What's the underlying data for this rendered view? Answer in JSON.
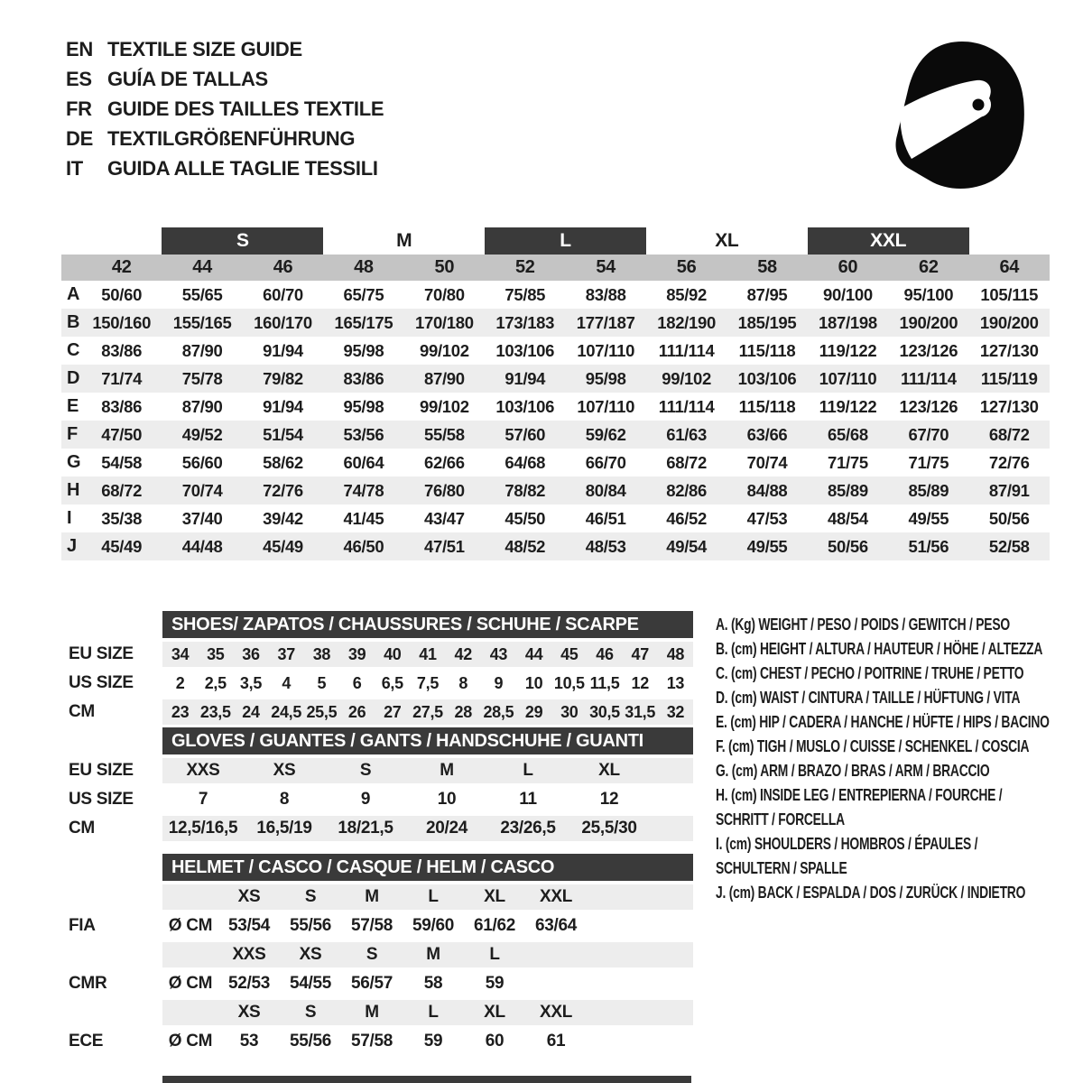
{
  "header": {
    "languages": [
      {
        "code": "EN",
        "label": "TEXTILE SIZE GUIDE"
      },
      {
        "code": "ES",
        "label": "GUÍA DE TALLAS"
      },
      {
        "code": "FR",
        "label": "GUIDE DES TAILLES TEXTILE"
      },
      {
        "code": "DE",
        "label": "TEXTILGRÖßENFÜHRUNG"
      },
      {
        "code": "IT",
        "label": "GUIDA ALLE TAGLIE TESSILI"
      }
    ],
    "icon": "racing-helmet-icon"
  },
  "textile_table": {
    "size_bands": [
      {
        "label": "S",
        "boxed": true
      },
      {
        "label": "M",
        "boxed": false
      },
      {
        "label": "L",
        "boxed": true
      },
      {
        "label": "XL",
        "boxed": false
      },
      {
        "label": "XXL",
        "boxed": true
      }
    ],
    "columns": [
      "42",
      "44",
      "46",
      "48",
      "50",
      "52",
      "54",
      "56",
      "58",
      "60",
      "62",
      "64"
    ],
    "rows": [
      {
        "label": "A",
        "values": [
          "50/60",
          "55/65",
          "60/70",
          "65/75",
          "70/80",
          "75/85",
          "83/88",
          "85/92",
          "87/95",
          "90/100",
          "95/100",
          "105/115"
        ]
      },
      {
        "label": "B",
        "values": [
          "150/160",
          "155/165",
          "160/170",
          "165/175",
          "170/180",
          "173/183",
          "177/187",
          "182/190",
          "185/195",
          "187/198",
          "190/200",
          "190/200"
        ]
      },
      {
        "label": "C",
        "values": [
          "83/86",
          "87/90",
          "91/94",
          "95/98",
          "99/102",
          "103/106",
          "107/110",
          "111/114",
          "115/118",
          "119/122",
          "123/126",
          "127/130"
        ]
      },
      {
        "label": "D",
        "values": [
          "71/74",
          "75/78",
          "79/82",
          "83/86",
          "87/90",
          "91/94",
          "95/98",
          "99/102",
          "103/106",
          "107/110",
          "111/114",
          "115/119"
        ]
      },
      {
        "label": "E",
        "values": [
          "83/86",
          "87/90",
          "91/94",
          "95/98",
          "99/102",
          "103/106",
          "107/110",
          "111/114",
          "115/118",
          "119/122",
          "123/126",
          "127/130"
        ]
      },
      {
        "label": "F",
        "values": [
          "47/50",
          "49/52",
          "51/54",
          "53/56",
          "55/58",
          "57/60",
          "59/62",
          "61/63",
          "63/66",
          "65/68",
          "67/70",
          "68/72"
        ]
      },
      {
        "label": "G",
        "values": [
          "54/58",
          "56/60",
          "58/62",
          "60/64",
          "62/66",
          "64/68",
          "66/70",
          "68/72",
          "70/74",
          "71/75",
          "71/75",
          "72/76"
        ]
      },
      {
        "label": "H",
        "values": [
          "68/72",
          "70/74",
          "72/76",
          "74/78",
          "76/80",
          "78/82",
          "80/84",
          "82/86",
          "84/88",
          "85/89",
          "85/89",
          "87/91"
        ]
      },
      {
        "label": "I",
        "values": [
          "35/38",
          "37/40",
          "39/42",
          "41/45",
          "43/47",
          "45/50",
          "46/51",
          "46/52",
          "47/53",
          "48/54",
          "49/55",
          "50/56"
        ]
      },
      {
        "label": "J",
        "values": [
          "45/49",
          "44/48",
          "45/49",
          "46/50",
          "47/51",
          "48/52",
          "48/53",
          "49/54",
          "49/55",
          "50/56",
          "51/56",
          "52/58"
        ]
      }
    ]
  },
  "shoes_table": {
    "title": "SHOES/ ZAPATOS / CHAUSSURES / SCHUHE / SCARPE",
    "rows": [
      {
        "label": "EU SIZE",
        "values": [
          "34",
          "35",
          "36",
          "37",
          "38",
          "39",
          "40",
          "41",
          "42",
          "43",
          "44",
          "45",
          "46",
          "47",
          "48"
        ]
      },
      {
        "label": "US SIZE",
        "values": [
          "2",
          "2,5",
          "3,5",
          "4",
          "5",
          "6",
          "6,5",
          "7,5",
          "8",
          "9",
          "10",
          "10,5",
          "11,5",
          "12",
          "13"
        ]
      },
      {
        "label": "CM",
        "values": [
          "23",
          "23,5",
          "24",
          "24,5",
          "25,5",
          "26",
          "27",
          "27,5",
          "28",
          "28,5",
          "29",
          "30",
          "30,5",
          "31,5",
          "32"
        ]
      }
    ]
  },
  "gloves_table": {
    "title": "GLOVES / GUANTES / GANTS / HANDSCHUHE / GUANTI",
    "rows": [
      {
        "label": "EU SIZE",
        "values": [
          "XXS",
          "XS",
          "S",
          "M",
          "L",
          "XL"
        ]
      },
      {
        "label": "US SIZE",
        "values": [
          "7",
          "8",
          "9",
          "10",
          "11",
          "12"
        ]
      },
      {
        "label": "CM",
        "values": [
          "12,5/16,5",
          "16,5/19",
          "18/21,5",
          "20/24",
          "23/26,5",
          "25,5/30"
        ]
      }
    ]
  },
  "helmet_table": {
    "title": "HELMET / CASCO / CASQUE / HELM / CASCO",
    "groups": [
      {
        "label": "FIA",
        "unit": "Ø CM",
        "sizes": [
          "XS",
          "S",
          "M",
          "L",
          "XL",
          "XXL"
        ],
        "values": [
          "53/54",
          "55/56",
          "57/58",
          "59/60",
          "61/62",
          "63/64"
        ]
      },
      {
        "label": "CMR",
        "unit": "Ø CM",
        "sizes": [
          "XXS",
          "XS",
          "S",
          "M",
          "L"
        ],
        "values": [
          "52/53",
          "54/55",
          "56/57",
          "58",
          "59"
        ]
      },
      {
        "label": "ECE",
        "unit": "Ø CM",
        "sizes": [
          "XS",
          "S",
          "M",
          "L",
          "XL",
          "XXL"
        ],
        "values": [
          "53",
          "55/56",
          "57/58",
          "59",
          "60",
          "61"
        ]
      }
    ]
  },
  "legend": {
    "items": [
      {
        "lines": [
          "A. (Kg) WEIGHT / PESO / POIDS / GEWITCH / PESO"
        ]
      },
      {
        "lines": [
          "B. (cm) HEIGHT / ALTURA / HAUTEUR / HÖHE / ALTEZZA"
        ]
      },
      {
        "lines": [
          "C. (cm) CHEST / PECHO / POITRINE / TRUHE / PETTO"
        ]
      },
      {
        "lines": [
          "D. (cm) WAIST / CINTURA / TAILLE / HÜFTUNG / VITA"
        ]
      },
      {
        "lines": [
          "E. (cm) HIP / CADERA / HANCHE / HÜFTE / HIPS / BACINO"
        ]
      },
      {
        "lines": [
          "F. (cm) TIGH / MUSLO / CUISSE / SCHENKEL / COSCIA"
        ]
      },
      {
        "lines": [
          "G. (cm) ARM / BRAZO / BRAS / ARM / BRACCIO"
        ]
      },
      {
        "lines": [
          "H. (cm) INSIDE LEG / ENTREPIERNA / FOURCHE /",
          "SCHRITT / FORCELLA"
        ]
      },
      {
        "lines": [
          "I. (cm) SHOULDERS / HOMBROS / ÉPAULES /",
          "SCHULTERN / SPALLE"
        ]
      },
      {
        "lines": [
          "J. (cm) BACK / ESPALDA / DOS / ZURÜCK / INDIETRO"
        ]
      }
    ]
  },
  "colors": {
    "dark_bar": "#3a3a3a",
    "column_band": "#c4c4c4",
    "row_stripe": "#ededed",
    "text": "#1d1d1d"
  }
}
